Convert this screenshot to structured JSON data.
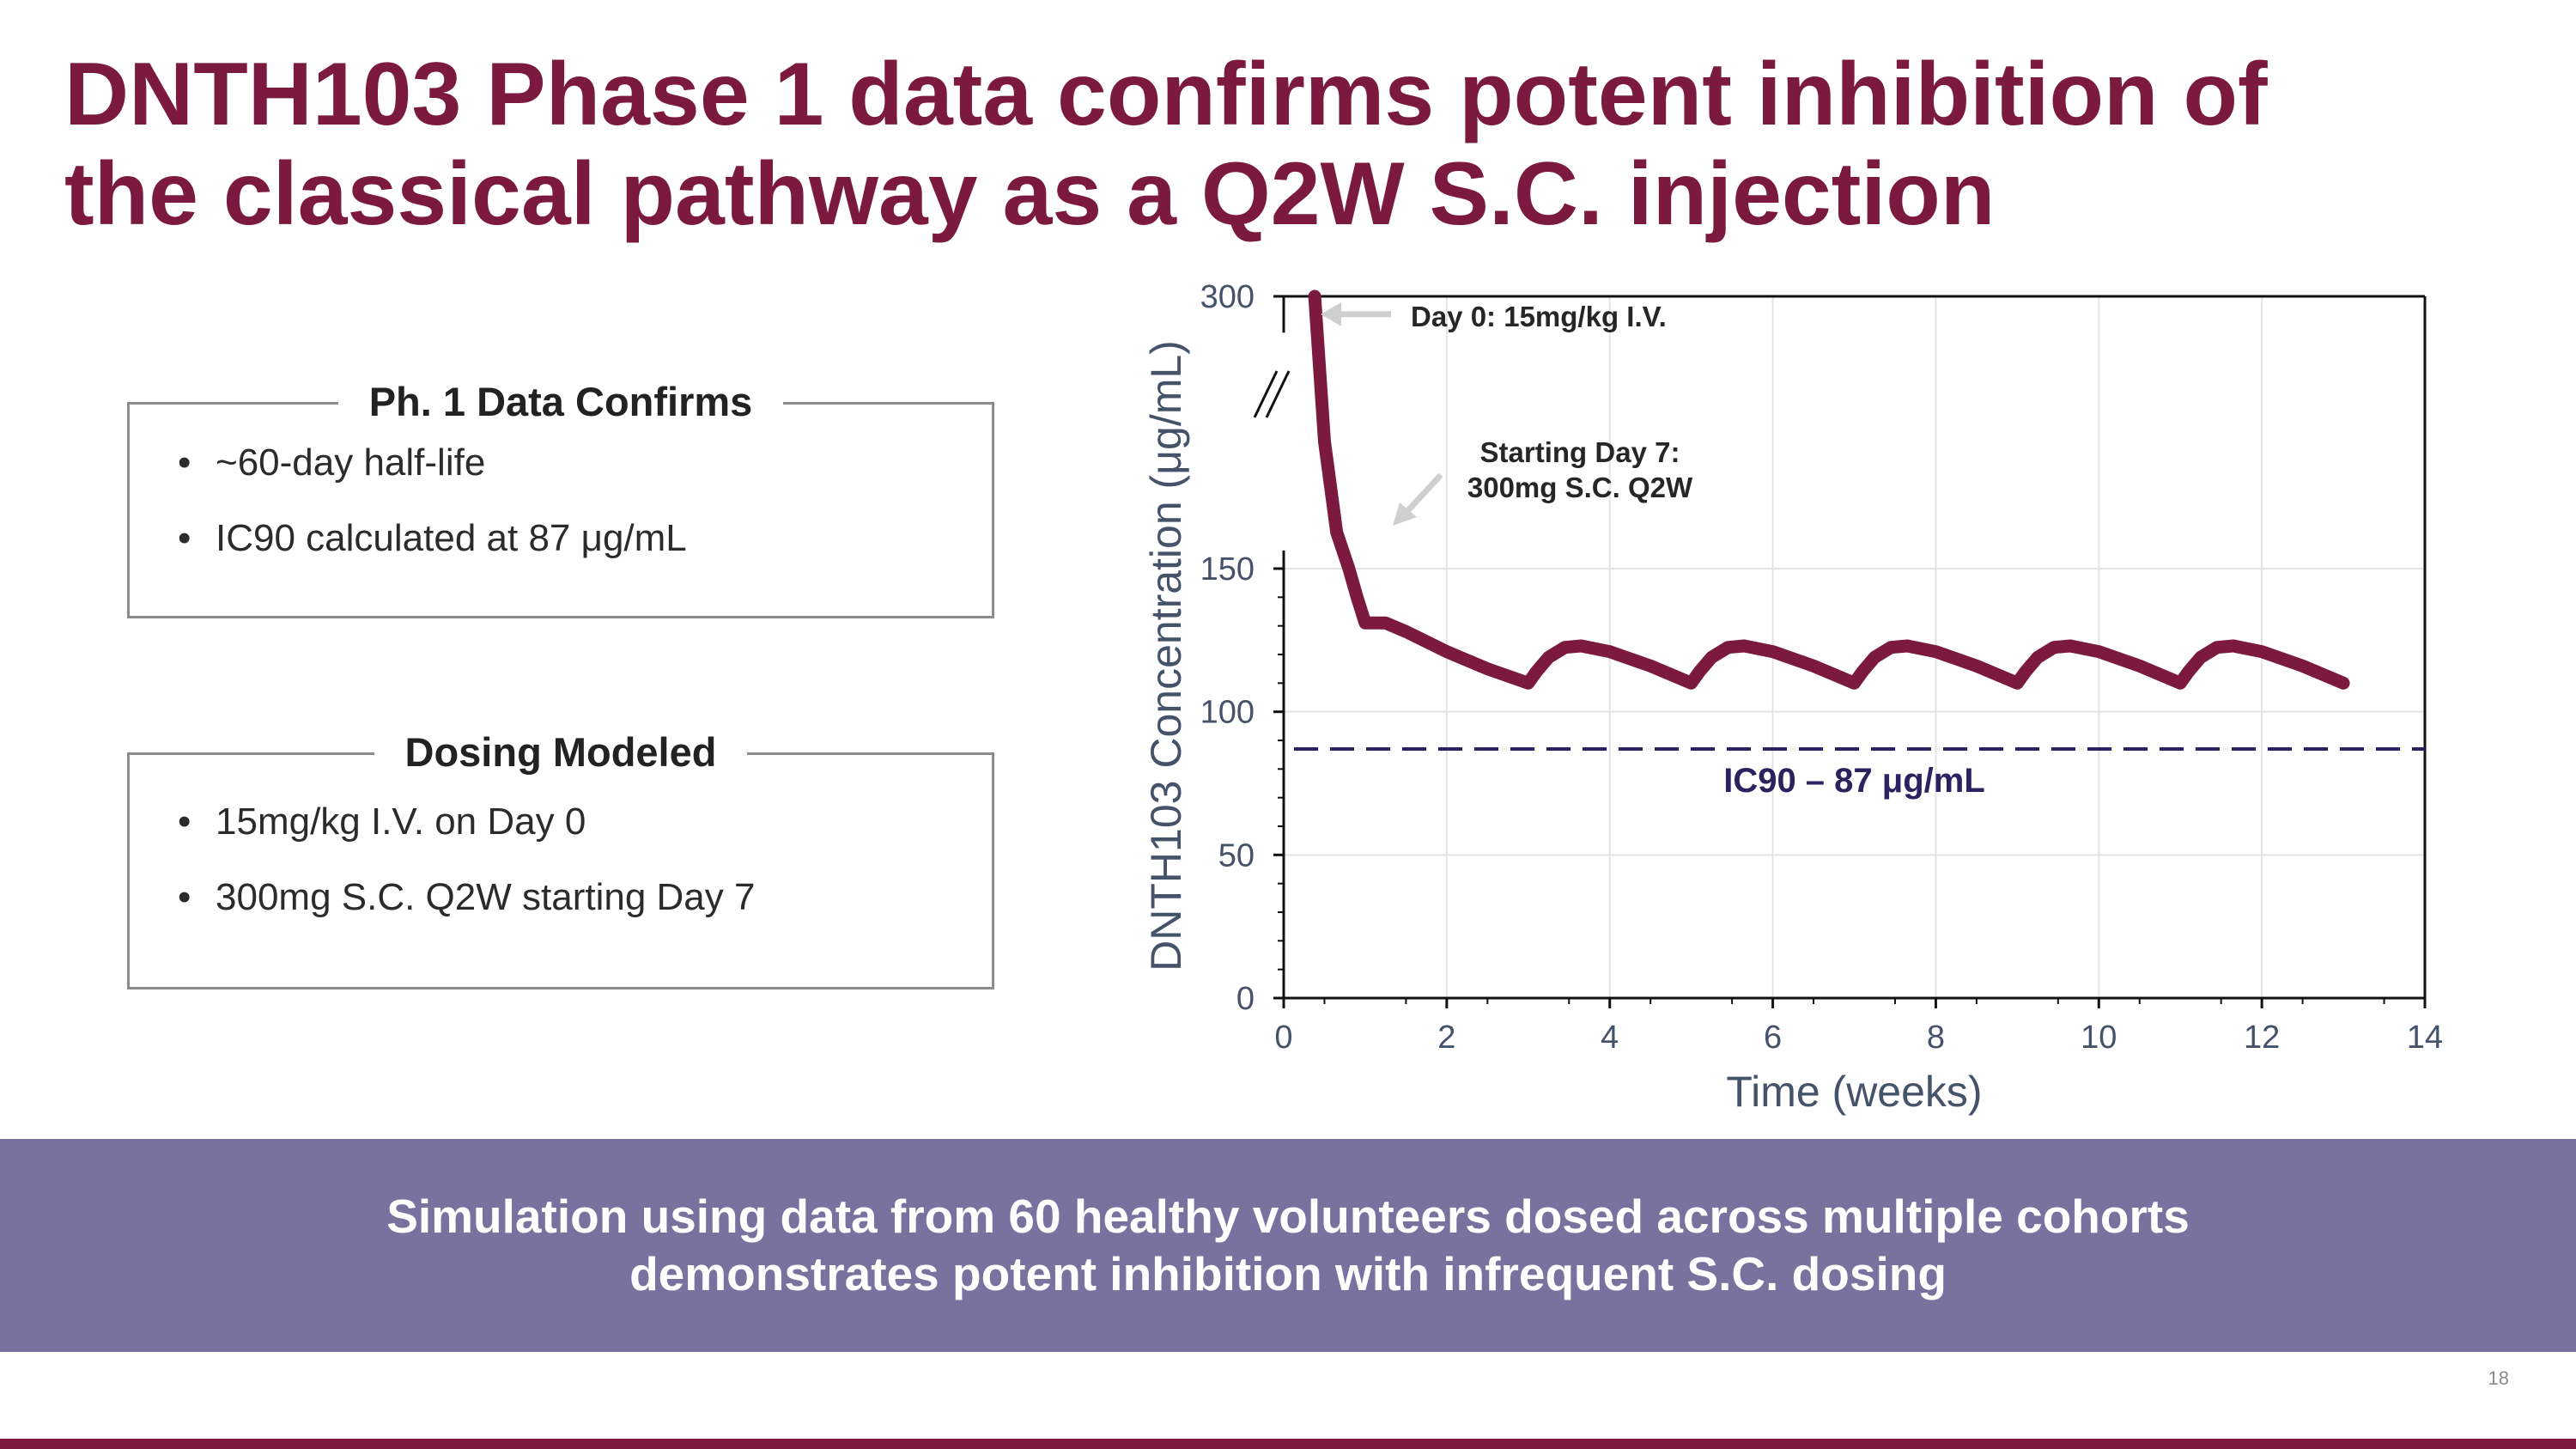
{
  "title": {
    "line1": "DNTH103 Phase 1 data confirms potent inhibition of",
    "line2": "the classical pathway as a Q2W S.C. injection"
  },
  "box1": {
    "heading": "Ph. 1 Data Confirms",
    "bullets": [
      "~60-day half-life",
      "IC90 calculated at 87 μg/mL"
    ]
  },
  "box2": {
    "heading": "Dosing Modeled",
    "bullets": [
      "15mg/kg I.V. on Day 0",
      "300mg S.C. Q2W starting Day 7"
    ]
  },
  "banner": {
    "line1": "Simulation using data from 60 healthy volunteers dosed across multiple cohorts",
    "line2": "demonstrates potent inhibition with infrequent S.C. dosing"
  },
  "page_number": "18",
  "colors": {
    "brand": "#7b1a3e",
    "curve": "#7b1a3e",
    "threshold": "#2e2160",
    "banner": "#79719e"
  },
  "chart_data": {
    "type": "line",
    "title": "",
    "xlabel": "Time (weeks)",
    "ylabel": "DNTH103 Concentration (μg/mL)",
    "xlim": [
      0,
      14
    ],
    "ylim": [
      0,
      300
    ],
    "y_axis_break": [
      160,
      280
    ],
    "x_ticks": [
      0,
      2,
      4,
      6,
      8,
      10,
      12,
      14
    ],
    "y_ticks": [
      0,
      50,
      100,
      150,
      300
    ],
    "grid": true,
    "series": [
      {
        "name": "DNTH103 simulated concentration",
        "x": [
          0.38,
          0.5,
          0.65,
          0.8,
          0.9,
          1.0,
          1.1,
          1.25,
          1.5,
          2.0,
          2.5,
          3.0,
          3.1,
          3.25,
          3.45,
          3.65,
          4.0,
          4.5,
          5.0,
          5.1,
          5.25,
          5.45,
          5.65,
          6.0,
          6.5,
          7.0,
          7.1,
          7.25,
          7.45,
          7.65,
          8.0,
          8.5,
          9.0,
          9.1,
          9.25,
          9.45,
          9.65,
          10.0,
          10.5,
          11.0,
          11.1,
          11.25,
          11.45,
          11.65,
          12.0,
          12.5,
          13.0
        ],
        "y": [
          300,
          220,
          170,
          150,
          140,
          131,
          131,
          131,
          128,
          121,
          115,
          110,
          114,
          119,
          122.5,
          123,
          121,
          116,
          110,
          114,
          119,
          122.5,
          123,
          121,
          116,
          110,
          114,
          119,
          122.5,
          123,
          121,
          116,
          110,
          114,
          119,
          122.5,
          123,
          121,
          116,
          110,
          114,
          119,
          122.5,
          123,
          121,
          116,
          110
        ]
      }
    ],
    "threshold": {
      "value": 87,
      "label": "IC90 – 87 μg/mL"
    },
    "annotations": [
      {
        "text": "Day 0: 15mg/kg I.V.",
        "x": 0.4,
        "y": 292
      },
      {
        "line1": "Starting Day 7:",
        "line2": "300mg S.C. Q2W",
        "x": 1.1,
        "y": 138
      }
    ]
  }
}
